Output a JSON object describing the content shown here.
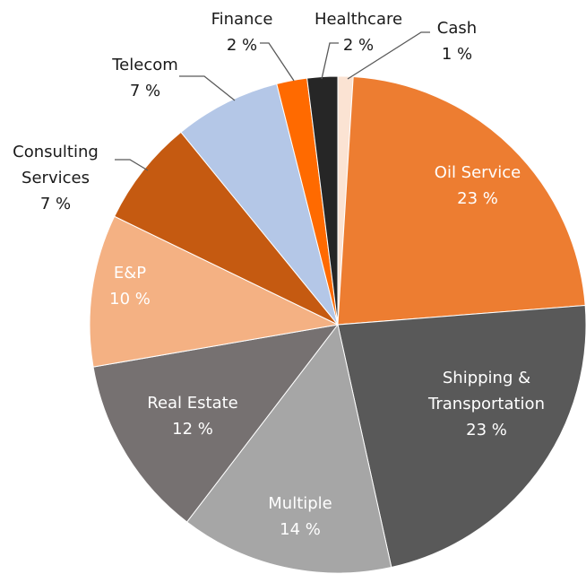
{
  "chart_data": {
    "type": "pie",
    "categories": [
      "Cash",
      "Oil Service",
      "Shipping & Transportation",
      "Multiple",
      "Real Estate",
      "E&P",
      "Consulting Services",
      "Telecom",
      "Finance",
      "Healthcare"
    ],
    "values": [
      1,
      23,
      23,
      14,
      12,
      10,
      7,
      7,
      2,
      2
    ],
    "value_labels": [
      "1 %",
      "23 %",
      "23 %",
      "14 %",
      "12 %",
      "10 %",
      "7 %",
      "7 %",
      "2 %",
      "2 %"
    ],
    "colors": [
      "#fbe3d3",
      "#ed7d31",
      "#595959",
      "#a6a6a6",
      "#767171",
      "#f4b183",
      "#c55a11",
      "#b4c7e7",
      "#ff6a00",
      "#262626"
    ]
  }
}
